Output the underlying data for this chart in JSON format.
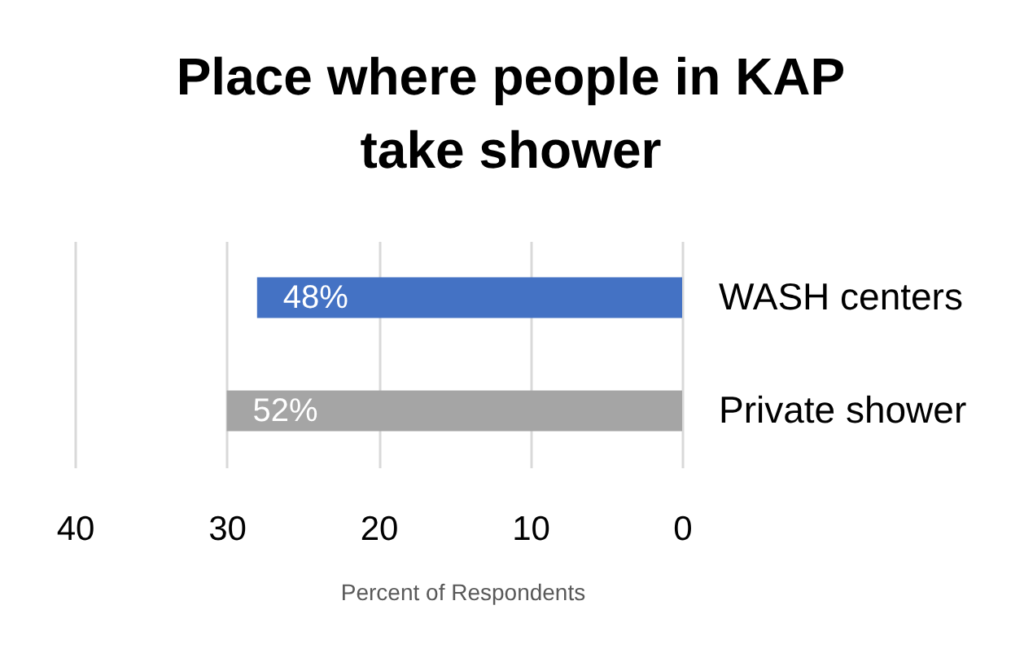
{
  "chart_data": {
    "type": "bar",
    "orientation": "horizontal",
    "title": "Place where people in KAP take shower",
    "xlabel": "Percent of Respondents",
    "categories": [
      "WASH centers",
      "Private shower"
    ],
    "values": [
      28,
      30
    ],
    "colors": [
      "#4472c4",
      "#a5a5a5"
    ],
    "annotations": [
      {
        "text": "48%",
        "x": 28,
        "y": "WASH centers"
      },
      {
        "text": "52%",
        "x": 30,
        "y": "Private shower"
      }
    ],
    "xlim": [
      40,
      0
    ],
    "xticks": [
      40,
      30,
      20,
      10,
      0
    ],
    "grid": "x"
  }
}
